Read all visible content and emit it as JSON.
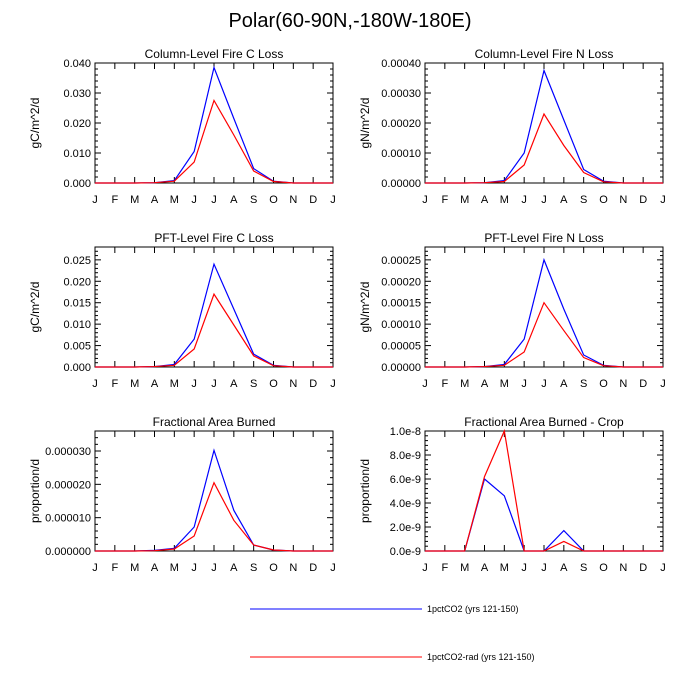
{
  "title": "Polar(60-90N,-180W-180E)",
  "months": [
    "J",
    "F",
    "M",
    "A",
    "M",
    "J",
    "J",
    "A",
    "S",
    "O",
    "N",
    "D",
    "J"
  ],
  "colors": {
    "series_1": "#0000ff",
    "series_2": "#ff0000",
    "axis": "#000000"
  },
  "legend": {
    "placement": "bottom-center",
    "items": [
      "1pctCO2 (yrs 121-150)",
      "1pctCO2-rad (yrs 121-150)"
    ]
  },
  "chart_data": [
    {
      "type": "line",
      "title": "Column-Level Fire C Loss",
      "xlabel": "",
      "ylabel": "gC/m^2/d",
      "ylim": [
        0,
        0.04
      ],
      "yticks": [
        0,
        0.01,
        0.02,
        0.03,
        0.04
      ],
      "ytick_labels": [
        "0.000",
        "0.010",
        "0.020",
        "0.030",
        "0.040"
      ],
      "categories": [
        "J",
        "F",
        "M",
        "A",
        "M",
        "J",
        "J",
        "A",
        "S",
        "O",
        "N",
        "D"
      ],
      "series": [
        {
          "name": "1pctCO2 (yrs 121-150)",
          "values": [
            0,
            0,
            0,
            0.0001,
            0.0008,
            0.0105,
            0.0385,
            0.0215,
            0.0048,
            0.0006,
            0,
            0
          ]
        },
        {
          "name": "1pctCO2-rad (yrs 121-150)",
          "values": [
            0,
            0,
            0,
            0.0001,
            0.0006,
            0.007,
            0.0275,
            0.016,
            0.004,
            0.0005,
            0,
            0
          ]
        }
      ]
    },
    {
      "type": "line",
      "title": "Column-Level Fire N Loss",
      "xlabel": "",
      "ylabel": "gN/m^2/d",
      "ylim": [
        0,
        0.0004
      ],
      "yticks": [
        0,
        0.0001,
        0.0002,
        0.0003,
        0.0004
      ],
      "ytick_labels": [
        "0.00000",
        "0.00010",
        "0.00020",
        "0.00030",
        "0.00040"
      ],
      "categories": [
        "J",
        "F",
        "M",
        "A",
        "M",
        "J",
        "J",
        "A",
        "S",
        "O",
        "N",
        "D"
      ],
      "series": [
        {
          "name": "1pctCO2 (yrs 121-150)",
          "values": [
            0,
            0,
            0,
            1e-06,
            8e-06,
            0.0001,
            0.000375,
            0.00021,
            4.5e-05,
            6e-06,
            0,
            0
          ]
        },
        {
          "name": "1pctCO2-rad (yrs 121-150)",
          "values": [
            0,
            0,
            0,
            1e-06,
            5e-06,
            6e-05,
            0.00023,
            0.000125,
            3.5e-05,
            4e-06,
            0,
            0
          ]
        }
      ]
    },
    {
      "type": "line",
      "title": "PFT-Level Fire C Loss",
      "xlabel": "",
      "ylabel": "gC/m^2/d",
      "ylim": [
        0,
        0.028
      ],
      "yticks": [
        0,
        0.005,
        0.01,
        0.015,
        0.02,
        0.025
      ],
      "ytick_labels": [
        "0.000",
        "0.005",
        "0.010",
        "0.015",
        "0.020",
        "0.025"
      ],
      "categories": [
        "J",
        "F",
        "M",
        "A",
        "M",
        "J",
        "J",
        "A",
        "S",
        "O",
        "N",
        "D"
      ],
      "series": [
        {
          "name": "1pctCO2 (yrs 121-150)",
          "values": [
            0,
            0,
            0,
            0.0001,
            0.0006,
            0.0065,
            0.024,
            0.0135,
            0.003,
            0.0004,
            0,
            0
          ]
        },
        {
          "name": "1pctCO2-rad (yrs 121-150)",
          "values": [
            0,
            0,
            0,
            0.0001,
            0.0004,
            0.0042,
            0.017,
            0.0098,
            0.0026,
            0.0003,
            0,
            0
          ]
        }
      ]
    },
    {
      "type": "line",
      "title": "PFT-Level Fire N Loss",
      "xlabel": "",
      "ylabel": "gN/m^2/d",
      "ylim": [
        0,
        0.00028
      ],
      "yticks": [
        0,
        5e-05,
        0.0001,
        0.00015,
        0.0002,
        0.00025
      ],
      "ytick_labels": [
        "0.00000",
        "0.00005",
        "0.00010",
        "0.00015",
        "0.00020",
        "0.00025"
      ],
      "categories": [
        "J",
        "F",
        "M",
        "A",
        "M",
        "J",
        "J",
        "A",
        "S",
        "O",
        "N",
        "D"
      ],
      "series": [
        {
          "name": "1pctCO2 (yrs 121-150)",
          "values": [
            0,
            0,
            0,
            1e-06,
            6e-06,
            6.5e-05,
            0.00025,
            0.000135,
            2.8e-05,
            4e-06,
            0,
            0
          ]
        },
        {
          "name": "1pctCO2-rad (yrs 121-150)",
          "values": [
            0,
            0,
            0,
            1e-06,
            4e-06,
            3.5e-05,
            0.00015,
            8.5e-05,
            2.2e-05,
            3e-06,
            0,
            0
          ]
        }
      ]
    },
    {
      "type": "line",
      "title": "Fractional Area Burned",
      "xlabel": "",
      "ylabel": "proportion/d",
      "ylim": [
        0,
        3.6e-05
      ],
      "yticks": [
        0,
        1e-05,
        2e-05,
        3e-05
      ],
      "ytick_labels": [
        "0.000000",
        "0.000010",
        "0.000020",
        "0.000030"
      ],
      "categories": [
        "J",
        "F",
        "M",
        "A",
        "M",
        "J",
        "J",
        "A",
        "S",
        "O",
        "N",
        "D"
      ],
      "series": [
        {
          "name": "1pctCO2 (yrs 121-150)",
          "values": [
            0,
            0,
            0,
            2e-07,
            8e-07,
            7.2e-06,
            3.02e-05,
            1.22e-05,
            1.8e-06,
            3e-07,
            0,
            0
          ]
        },
        {
          "name": "1pctCO2-rad (yrs 121-150)",
          "values": [
            0,
            0,
            0,
            1e-07,
            6e-07,
            4.5e-06,
            2.05e-05,
            9.2e-06,
            1.8e-06,
            3e-07,
            0,
            0
          ]
        }
      ]
    },
    {
      "type": "line",
      "title": "Fractional Area Burned - Crop",
      "xlabel": "",
      "ylabel": "proportion/d",
      "ylim": [
        0,
        1e-08
      ],
      "yticks": [
        0,
        2e-09,
        4e-09,
        6e-09,
        8e-09,
        1e-08
      ],
      "ytick_labels": [
        "0.0e-9",
        "2.0e-9",
        "4.0e-9",
        "6.0e-9",
        "8.0e-9",
        "1.0e-8"
      ],
      "categories": [
        "J",
        "F",
        "M",
        "A",
        "M",
        "J",
        "J",
        "A",
        "S",
        "O",
        "N",
        "D"
      ],
      "series": [
        {
          "name": "1pctCO2 (yrs 121-150)",
          "values": [
            0,
            0,
            0,
            6e-09,
            4.6e-09,
            0,
            0,
            1.7e-09,
            0,
            0,
            0,
            0
          ]
        },
        {
          "name": "1pctCO2-rad (yrs 121-150)",
          "values": [
            0,
            0,
            0,
            6.2e-09,
            1e-08,
            0,
            0,
            8e-10,
            0,
            0,
            0,
            0
          ]
        }
      ]
    }
  ]
}
